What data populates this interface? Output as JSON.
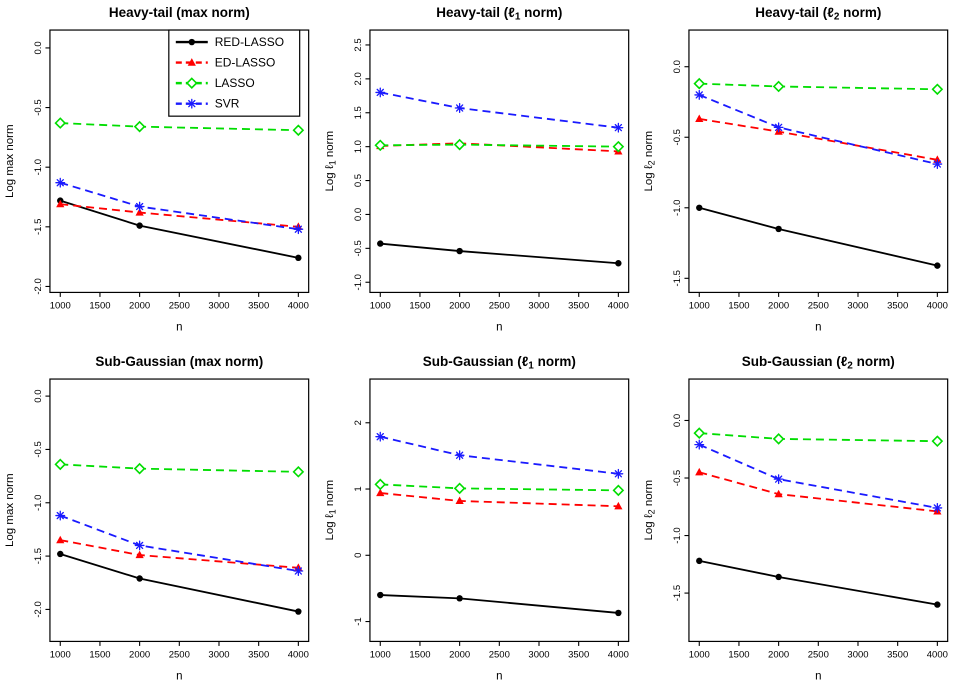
{
  "figure_title": "",
  "colors": {
    "red_lasso": "#000000",
    "ed_lasso": "#ff0000",
    "lasso": "#00dd00",
    "svr": "#1a1aff",
    "axis": "#000000",
    "background": "#ffffff"
  },
  "series_defs": [
    {
      "name": "RED-LASSO",
      "color": "#000000",
      "marker": "circle",
      "dash": "solid"
    },
    {
      "name": "ED-LASSO",
      "color": "#ff0000",
      "marker": "triangle",
      "dash": "dashed"
    },
    {
      "name": "LASSO",
      "color": "#00dd00",
      "marker": "diamond",
      "dash": "dashed"
    },
    {
      "name": "SVR",
      "color": "#1a1aff",
      "marker": "asterisk",
      "dash": "dashed"
    }
  ],
  "legend": {
    "chart_index": 0,
    "position": "topright",
    "labels": [
      "RED-LASSO",
      "ED-LASSO",
      "LASSO",
      "SVR"
    ]
  },
  "axes_common": {
    "x": [
      1000,
      2000,
      4000
    ],
    "xticks": [
      1000,
      1500,
      2000,
      2500,
      3000,
      3500,
      4000
    ],
    "xtick_labels": [
      "1000",
      "1500",
      "2000",
      "2500",
      "3000",
      "3500",
      "4000"
    ],
    "xlim": [
      870,
      4130
    ],
    "xlabel": "n",
    "grid": false
  },
  "chart_data": [
    {
      "id": "heavy-tail-max-norm",
      "type": "line",
      "title": {
        "pre": "Heavy-tail (max norm)",
        "sub": "",
        "post": ""
      },
      "ylabel": {
        "pre": "Log max norm",
        "sub": "",
        "post": ""
      },
      "ylim": [
        -2.05,
        0.15
      ],
      "yticks": [
        0,
        -0.5,
        -1,
        -1.5,
        -2
      ],
      "ytick_labels": [
        "0.0",
        "-0.5",
        "-1.0",
        "-1.5",
        "-2.0"
      ],
      "series": [
        {
          "name": "RED-LASSO",
          "values": [
            -1.28,
            -1.49,
            -1.76
          ]
        },
        {
          "name": "ED-LASSO",
          "values": [
            -1.31,
            -1.38,
            -1.5
          ]
        },
        {
          "name": "LASSO",
          "values": [
            -0.63,
            -0.66,
            -0.69
          ]
        },
        {
          "name": "SVR",
          "values": [
            -1.13,
            -1.33,
            -1.52
          ]
        }
      ],
      "legend": true
    },
    {
      "id": "heavy-tail-l1-norm",
      "type": "line",
      "title": {
        "pre": "Heavy-tail (ℓ",
        "sub": "1",
        "post": " norm)"
      },
      "ylabel": {
        "pre": "Log ℓ",
        "sub": "1",
        "post": " norm"
      },
      "ylim": [
        -1.15,
        2.72
      ],
      "yticks": [
        2.5,
        2,
        1.5,
        1,
        0.5,
        0,
        -0.5,
        -1
      ],
      "ytick_labels": [
        "2.5",
        "2.0",
        "1.5",
        "1.0",
        "0.5",
        "0.0",
        "-0.5",
        "-1.0"
      ],
      "series": [
        {
          "name": "RED-LASSO",
          "values": [
            -0.43,
            -0.54,
            -0.72
          ]
        },
        {
          "name": "ED-LASSO",
          "values": [
            1.01,
            1.05,
            0.93
          ]
        },
        {
          "name": "LASSO",
          "values": [
            1.02,
            1.03,
            1.0
          ]
        },
        {
          "name": "SVR",
          "values": [
            1.8,
            1.57,
            1.28
          ]
        }
      ],
      "legend": false
    },
    {
      "id": "heavy-tail-l2-norm",
      "type": "line",
      "title": {
        "pre": "Heavy-tail (ℓ",
        "sub": "2",
        "post": " norm)"
      },
      "ylabel": {
        "pre": "Log ℓ",
        "sub": "2",
        "post": " norm"
      },
      "ylim": [
        -1.6,
        0.26
      ],
      "yticks": [
        0,
        -0.5,
        -1,
        -1.5
      ],
      "ytick_labels": [
        "0.0",
        "-0.5",
        "-1.0",
        "-1.5"
      ],
      "series": [
        {
          "name": "RED-LASSO",
          "values": [
            -1.0,
            -1.15,
            -1.41
          ]
        },
        {
          "name": "ED-LASSO",
          "values": [
            -0.37,
            -0.46,
            -0.66
          ]
        },
        {
          "name": "LASSO",
          "values": [
            -0.12,
            -0.14,
            -0.16
          ]
        },
        {
          "name": "SVR",
          "values": [
            -0.2,
            -0.43,
            -0.69
          ]
        }
      ],
      "legend": false
    },
    {
      "id": "sub-gaussian-max-norm",
      "type": "line",
      "title": {
        "pre": "Sub-Gaussian (max norm)",
        "sub": "",
        "post": ""
      },
      "ylabel": {
        "pre": "Log max norm",
        "sub": "",
        "post": ""
      },
      "ylim": [
        -2.3,
        0.16
      ],
      "yticks": [
        0,
        -0.5,
        -1,
        -1.5,
        -2
      ],
      "ytick_labels": [
        "0.0",
        "-0.5",
        "-1.0",
        "-1.5",
        "-2.0"
      ],
      "series": [
        {
          "name": "RED-LASSO",
          "values": [
            -1.48,
            -1.71,
            -2.02
          ]
        },
        {
          "name": "ED-LASSO",
          "values": [
            -1.35,
            -1.49,
            -1.61
          ]
        },
        {
          "name": "LASSO",
          "values": [
            -0.64,
            -0.68,
            -0.71
          ]
        },
        {
          "name": "SVR",
          "values": [
            -1.12,
            -1.4,
            -1.64
          ]
        }
      ],
      "legend": false
    },
    {
      "id": "sub-gaussian-l1-norm",
      "type": "line",
      "title": {
        "pre": "Sub-Gaussian (ℓ",
        "sub": "1",
        "post": " norm)"
      },
      "ylabel": {
        "pre": "Log ℓ",
        "sub": "1",
        "post": " norm"
      },
      "ylim": [
        -1.3,
        2.66
      ],
      "yticks": [
        2,
        1,
        0,
        -1
      ],
      "ytick_labels": [
        "2",
        "1",
        "0",
        "-1"
      ],
      "series": [
        {
          "name": "RED-LASSO",
          "values": [
            -0.6,
            -0.65,
            -0.87
          ]
        },
        {
          "name": "ED-LASSO",
          "values": [
            0.94,
            0.82,
            0.74
          ]
        },
        {
          "name": "LASSO",
          "values": [
            1.07,
            1.01,
            0.98
          ]
        },
        {
          "name": "SVR",
          "values": [
            1.79,
            1.51,
            1.23
          ]
        }
      ],
      "legend": false
    },
    {
      "id": "sub-gaussian-l2-norm",
      "type": "line",
      "title": {
        "pre": "Sub-Gaussian (ℓ",
        "sub": "2",
        "post": " norm)"
      },
      "ylabel": {
        "pre": "Log ℓ",
        "sub": "2",
        "post": " norm"
      },
      "ylim": [
        -1.92,
        0.36
      ],
      "yticks": [
        0,
        -0.5,
        -1,
        -1.5
      ],
      "ytick_labels": [
        "0.0",
        "-0.5",
        "-1.0",
        "-1.5"
      ],
      "series": [
        {
          "name": "RED-LASSO",
          "values": [
            -1.22,
            -1.36,
            -1.6
          ]
        },
        {
          "name": "ED-LASSO",
          "values": [
            -0.45,
            -0.64,
            -0.79
          ]
        },
        {
          "name": "LASSO",
          "values": [
            -0.11,
            -0.16,
            -0.18
          ]
        },
        {
          "name": "SVR",
          "values": [
            -0.21,
            -0.51,
            -0.76
          ]
        }
      ],
      "legend": false
    }
  ]
}
